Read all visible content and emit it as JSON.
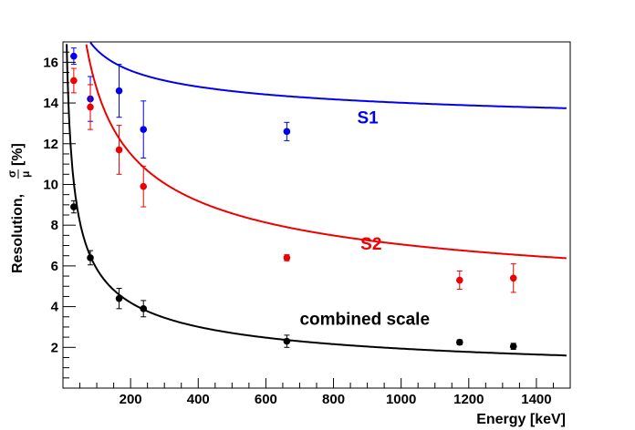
{
  "chart_data": {
    "type": "scatter",
    "xlabel": "Energy [keV]",
    "ylabel_prefix": "Resolution, ",
    "ylabel_frac_num": "σ",
    "ylabel_frac_den": "μ",
    "ylabel_suffix": " [%]",
    "xlim": [
      0,
      1500
    ],
    "ylim": [
      0,
      17
    ],
    "xticks": [
      200,
      400,
      600,
      800,
      1000,
      1200,
      1400
    ],
    "yticks": [
      2,
      4,
      6,
      8,
      10,
      12,
      14,
      16
    ],
    "grid": false,
    "series": [
      {
        "name": "S1",
        "color": "#0000ee",
        "points": [
          {
            "x": 32,
            "y": 16.3,
            "err": 0.4
          },
          {
            "x": 81,
            "y": 14.2,
            "err": 1.1
          },
          {
            "x": 166,
            "y": 14.6,
            "err": 1.3
          },
          {
            "x": 238,
            "y": 12.7,
            "err": 1.4
          },
          {
            "x": 662,
            "y": 12.6,
            "err": 0.45
          }
        ],
        "curve": {
          "a": 24.2,
          "b": 12.0,
          "c": 0.36
        }
      },
      {
        "name": "S2",
        "color": "#ee0000",
        "points": [
          {
            "x": 32,
            "y": 15.1,
            "err": 0.6
          },
          {
            "x": 81,
            "y": 13.8,
            "err": 1.1
          },
          {
            "x": 166,
            "y": 11.7,
            "err": 1.2
          },
          {
            "x": 238,
            "y": 9.9,
            "err": 1.0
          },
          {
            "x": 662,
            "y": 6.4,
            "err": 0.15
          },
          {
            "x": 1173,
            "y": 5.3,
            "err": 0.45
          },
          {
            "x": 1332,
            "y": 5.4,
            "err": 0.7
          }
        ],
        "curve": {
          "a": 97.3,
          "b": 3.0,
          "c": 0.46
        }
      },
      {
        "name": "combined scale",
        "color": "#000000",
        "points": [
          {
            "x": 32,
            "y": 8.9,
            "err": 0.3
          },
          {
            "x": 81,
            "y": 6.4,
            "err": 0.35
          },
          {
            "x": 166,
            "y": 4.4,
            "err": 0.5
          },
          {
            "x": 238,
            "y": 3.9,
            "err": 0.4
          },
          {
            "x": 662,
            "y": 2.3,
            "err": 0.3
          },
          {
            "x": 1173,
            "y": 2.25,
            "err": 0.12
          },
          {
            "x": 1332,
            "y": 2.05,
            "err": 0.15
          }
        ],
        "curve": {
          "a": 53.4,
          "b": 0.0,
          "c": 0.48
        }
      }
    ],
    "labels": [
      {
        "text": "S1",
        "color": "#0000ee",
        "x": 870,
        "y": 13.0
      },
      {
        "text": "S2",
        "color": "#ee0000",
        "x": 880,
        "y": 6.8
      },
      {
        "text": "combined scale",
        "color": "#000000",
        "x": 700,
        "y": 3.1
      }
    ]
  }
}
